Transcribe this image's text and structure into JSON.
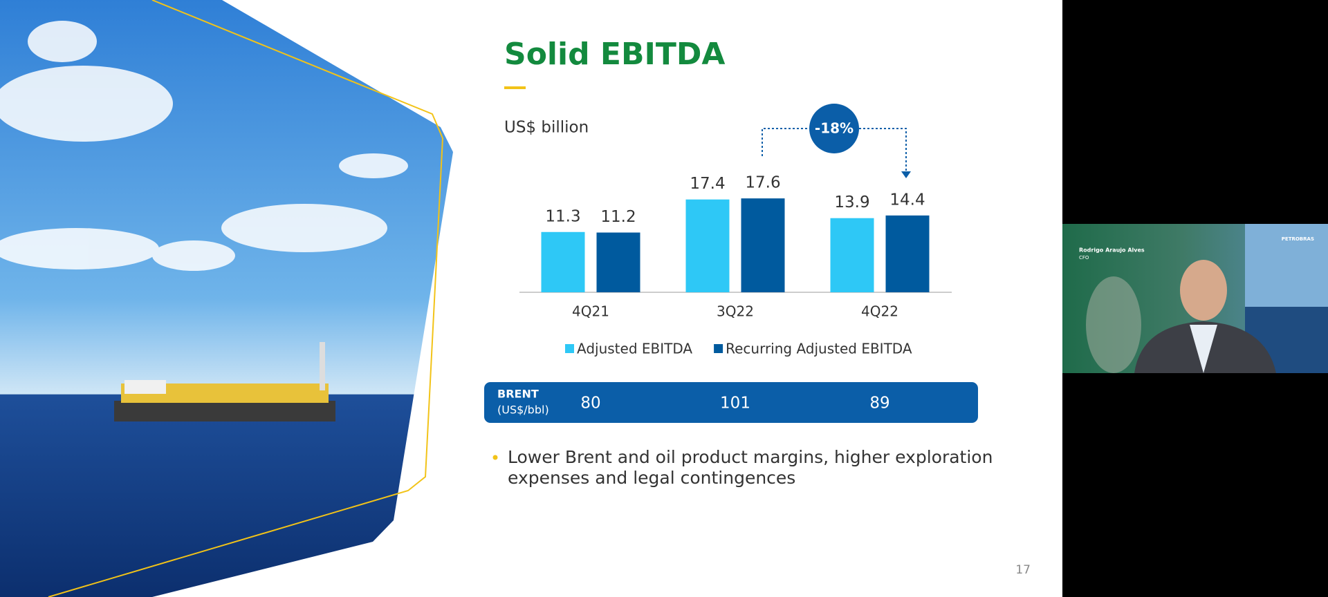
{
  "chart_data": {
    "type": "bar",
    "title": "Solid EBITDA",
    "subtitle": "US$ billion",
    "categories": [
      "4Q21",
      "3Q22",
      "4Q22"
    ],
    "series": [
      {
        "name": "Adjusted EBITDA",
        "color": "#2ec8f6",
        "values": [
          11.3,
          17.4,
          13.9
        ]
      },
      {
        "name": "Recurring Adjusted EBITDA",
        "color": "#005a9e",
        "values": [
          11.2,
          17.6,
          14.4
        ]
      }
    ],
    "annotation": "-18%",
    "brent": {
      "label": "BRENT",
      "unit": "(US$/bbl)",
      "values": [
        80,
        101,
        89
      ]
    }
  },
  "slide": {
    "bullet_lines": [
      "Lower Brent and oil product margins, higher exploration",
      "expenses and legal contingences"
    ],
    "page_number": "17"
  },
  "video": {
    "speaker_name": "Rodrigo Araujo Alves",
    "speaker_role": "CFO",
    "logo": "PETROBRAS"
  }
}
